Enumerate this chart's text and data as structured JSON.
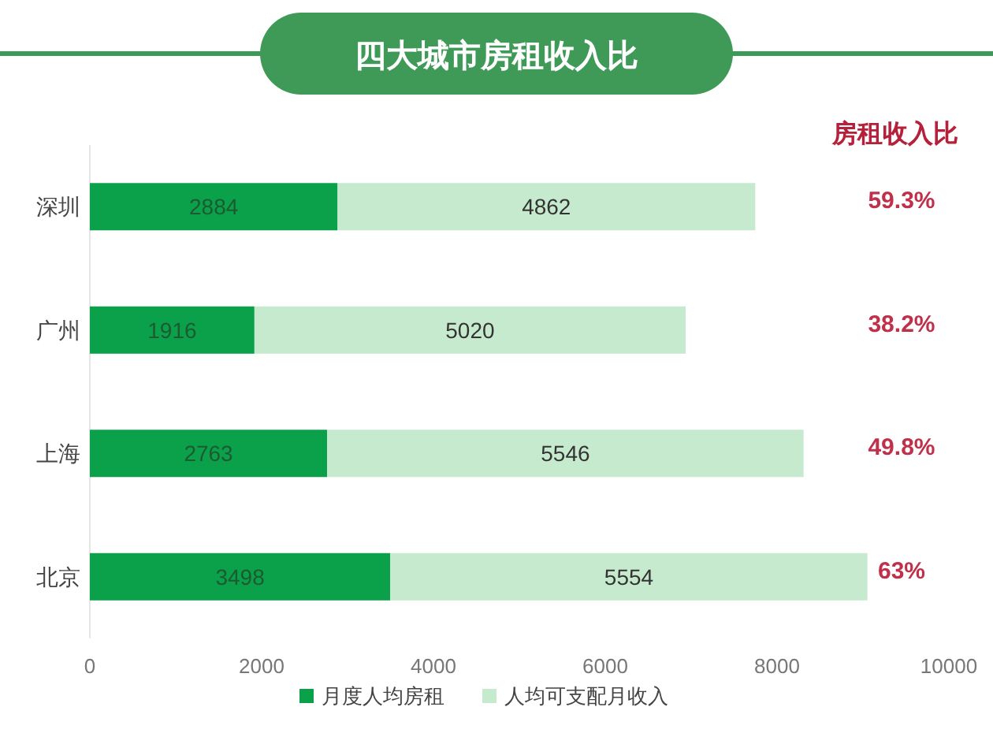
{
  "chart_data": {
    "type": "bar",
    "title": "四大城市房租收入比",
    "orientation": "horizontal",
    "stacked": true,
    "categories": [
      "深圳",
      "广州",
      "上海",
      "北京"
    ],
    "series": [
      {
        "name": "月度人均房租",
        "color": "#0aa14a",
        "values": [
          2884,
          1916,
          2763,
          3498
        ]
      },
      {
        "name": "人均可支配月收入",
        "color": "#c6eacd",
        "values": [
          4862,
          5020,
          5546,
          5554
        ]
      }
    ],
    "xlim": [
      0,
      10000
    ],
    "xticks": [
      0,
      2000,
      4000,
      6000,
      8000,
      10000
    ],
    "data_labels": true,
    "legend": "bottom",
    "annotations": [
      "房租收入比",
      "59.3%",
      "38.2%",
      "49.8%",
      "63%"
    ]
  }
}
